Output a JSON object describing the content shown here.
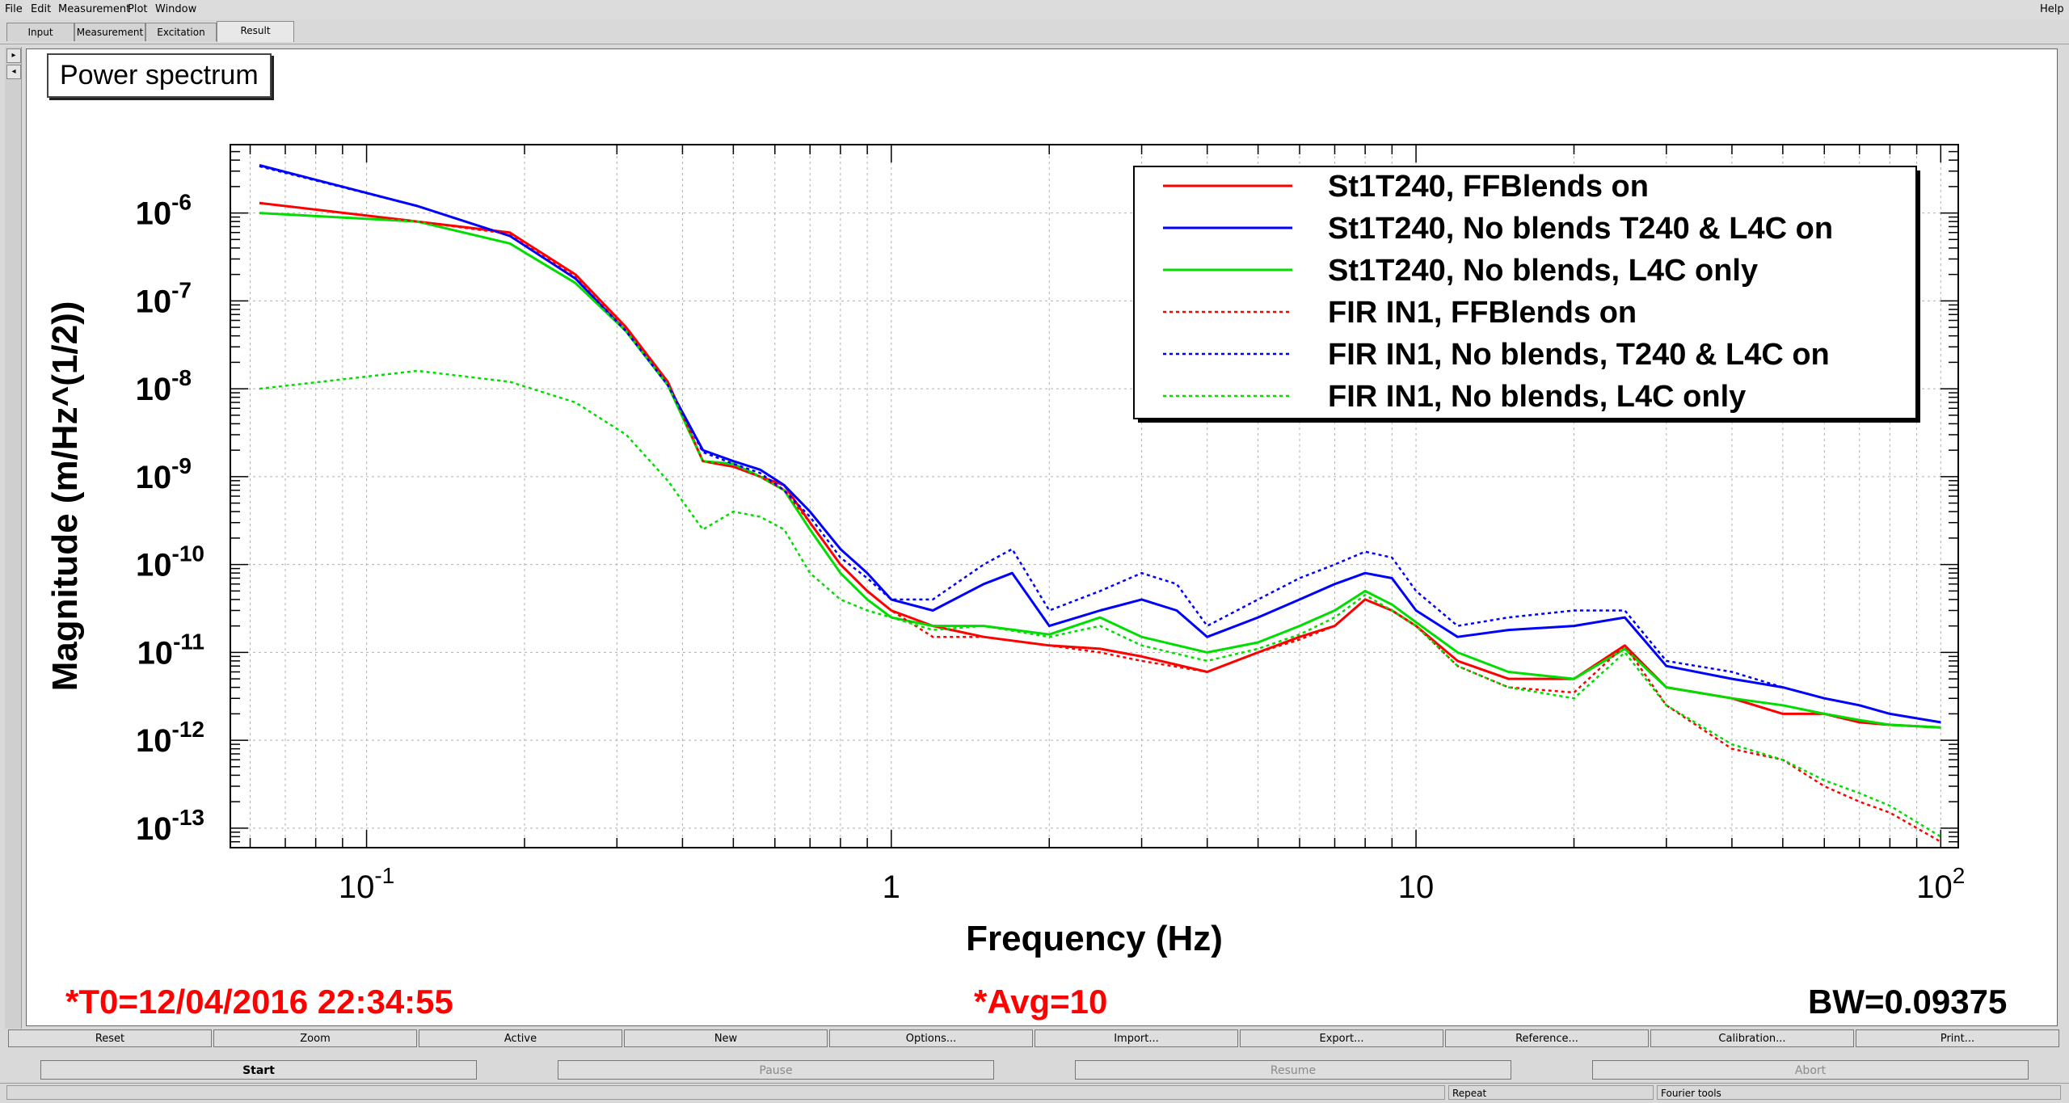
{
  "menubar": {
    "items": [
      "File",
      "Edit",
      "Measurement",
      "Plot",
      "Window"
    ],
    "help": "Help"
  },
  "tabs": [
    {
      "label": "Input"
    },
    {
      "label": "Measurement"
    },
    {
      "label": "Excitation"
    },
    {
      "label": "Result",
      "active": true
    }
  ],
  "plot": {
    "title": "Power spectrum",
    "t0": "*T0=12/04/2016 22:34:55",
    "avg": "*Avg=10",
    "bw": "BW=0.09375"
  },
  "chart_data": {
    "type": "line",
    "xlabel": "Frequency (Hz)",
    "ylabel": "Magnitude (m/Hz^(1/2))",
    "xscale": "log",
    "yscale": "log",
    "xlim": [
      0.055,
      108
    ],
    "ylim": [
      6e-14,
      6e-06
    ],
    "grid": true,
    "legend_position": "top-right",
    "x_ticks": [
      {
        "mantissa": "10",
        "exp": "-1"
      },
      {
        "mantissa": "1",
        "exp": ""
      },
      {
        "mantissa": "10",
        "exp": ""
      },
      {
        "mantissa": "10",
        "exp": "2"
      }
    ],
    "y_ticks": [
      {
        "mantissa": "10",
        "exp": "-6"
      },
      {
        "mantissa": "10",
        "exp": "-7"
      },
      {
        "mantissa": "10",
        "exp": "-8"
      },
      {
        "mantissa": "10",
        "exp": "-9"
      },
      {
        "mantissa": "10",
        "exp": "-10"
      },
      {
        "mantissa": "10",
        "exp": "-11"
      },
      {
        "mantissa": "10",
        "exp": "-12"
      },
      {
        "mantissa": "10",
        "exp": "-13"
      }
    ],
    "series": [
      {
        "name": "St1T240, FFBlends on",
        "color": "#ff0000",
        "style": "solid",
        "x": [
          0.0625,
          0.125,
          0.1875,
          0.25,
          0.3125,
          0.375,
          0.4375,
          0.5,
          0.5625,
          0.625,
          0.7,
          0.8,
          0.9,
          1.0,
          1.2,
          1.5,
          2.0,
          2.5,
          3.0,
          4.0,
          5.0,
          6.0,
          7.0,
          8.0,
          9.0,
          10,
          12,
          15,
          20,
          25,
          30,
          40,
          50,
          60,
          70,
          80,
          100
        ],
        "y": [
          1.3e-06,
          8e-07,
          6e-07,
          2e-07,
          5e-08,
          1.2e-08,
          1.5e-09,
          1.3e-09,
          1e-09,
          8e-10,
          3e-10,
          1e-10,
          5e-11,
          3e-11,
          2e-11,
          1.5e-11,
          1.2e-11,
          1.1e-11,
          9e-12,
          6e-12,
          1e-11,
          1.5e-11,
          2e-11,
          4e-11,
          3e-11,
          2e-11,
          8e-12,
          5e-12,
          5e-12,
          1.2e-11,
          4e-12,
          3e-12,
          2e-12,
          2e-12,
          1.6e-12,
          1.5e-12,
          1.4e-12
        ]
      },
      {
        "name": "St1T240, No blends T240 & L4C on",
        "color": "#0000ff",
        "style": "solid",
        "x": [
          0.0625,
          0.125,
          0.1875,
          0.25,
          0.3125,
          0.375,
          0.4375,
          0.5,
          0.5625,
          0.625,
          0.7,
          0.8,
          0.9,
          1.0,
          1.2,
          1.5,
          1.7,
          2.0,
          2.5,
          3.0,
          3.5,
          4.0,
          5.0,
          6.0,
          7.0,
          8.0,
          9.0,
          10,
          12,
          15,
          20,
          25,
          30,
          40,
          50,
          60,
          70,
          80,
          100
        ],
        "y": [
          3.5e-06,
          1.2e-06,
          5.5e-07,
          1.8e-07,
          4.5e-08,
          1.1e-08,
          2e-09,
          1.5e-09,
          1.2e-09,
          8e-10,
          4e-10,
          1.5e-10,
          8e-11,
          4e-11,
          3e-11,
          6e-11,
          8e-11,
          2e-11,
          3e-11,
          4e-11,
          3e-11,
          1.5e-11,
          2.5e-11,
          4e-11,
          6e-11,
          8e-11,
          7e-11,
          3e-11,
          1.5e-11,
          1.8e-11,
          2e-11,
          2.5e-11,
          7e-12,
          5e-12,
          4e-12,
          3e-12,
          2.5e-12,
          2e-12,
          1.6e-12
        ]
      },
      {
        "name": "St1T240, No blends, L4C only",
        "color": "#00dd00",
        "style": "solid",
        "x": [
          0.0625,
          0.125,
          0.1875,
          0.25,
          0.3125,
          0.375,
          0.4375,
          0.5,
          0.5625,
          0.625,
          0.7,
          0.8,
          0.9,
          1.0,
          1.2,
          1.5,
          2.0,
          2.5,
          3.0,
          4.0,
          5.0,
          6.0,
          7.0,
          8.0,
          9.0,
          10,
          12,
          15,
          20,
          25,
          30,
          40,
          50,
          60,
          70,
          80,
          100
        ],
        "y": [
          1e-06,
          8e-07,
          4.5e-07,
          1.6e-07,
          4.5e-08,
          1.1e-08,
          1.5e-09,
          1.4e-09,
          1e-09,
          7e-10,
          2.5e-10,
          8e-11,
          4e-11,
          2.5e-11,
          2e-11,
          2e-11,
          1.6e-11,
          2.5e-11,
          1.5e-11,
          1e-11,
          1.3e-11,
          2e-11,
          3e-11,
          5e-11,
          3.5e-11,
          2.2e-11,
          1e-11,
          6e-12,
          5e-12,
          1.1e-11,
          4e-12,
          3e-12,
          2.5e-12,
          2e-12,
          1.7e-12,
          1.5e-12,
          1.4e-12
        ]
      },
      {
        "name": "FIR IN1, FFBlends on",
        "color": "#ff0000",
        "style": "dotted",
        "x": [
          0.0625,
          0.125,
          0.1875,
          0.25,
          0.3125,
          0.375,
          0.4375,
          0.5,
          0.5625,
          0.625,
          0.7,
          0.8,
          0.9,
          1.0,
          1.2,
          1.5,
          2.0,
          2.5,
          3.0,
          4.0,
          5.0,
          6.0,
          7.0,
          8.0,
          9.0,
          10,
          12,
          15,
          20,
          25,
          30,
          40,
          50,
          60,
          70,
          80,
          100
        ],
        "y": [
          1.3e-06,
          8e-07,
          5.8e-07,
          1.9e-07,
          4.8e-08,
          1.2e-08,
          1.5e-09,
          1.3e-09,
          1e-09,
          7e-10,
          3e-10,
          1e-10,
          5e-11,
          3e-11,
          1.5e-11,
          1.5e-11,
          1.2e-11,
          1e-11,
          8e-12,
          6e-12,
          1e-11,
          1.4e-11,
          2e-11,
          4e-11,
          3e-11,
          2e-11,
          7e-12,
          4e-12,
          3.5e-12,
          1.2e-11,
          2.5e-12,
          8e-13,
          6e-13,
          3e-13,
          2e-13,
          1.5e-13,
          7e-14
        ]
      },
      {
        "name": "FIR IN1, No blends, T240 & L4C on",
        "color": "#0000ff",
        "style": "dotted",
        "x": [
          0.0625,
          0.125,
          0.1875,
          0.25,
          0.3125,
          0.375,
          0.4375,
          0.5,
          0.5625,
          0.625,
          0.7,
          0.8,
          0.9,
          1.0,
          1.2,
          1.5,
          1.7,
          2.0,
          2.5,
          3.0,
          3.5,
          4.0,
          5.0,
          6.0,
          7.0,
          8.0,
          9.0,
          10,
          12,
          15,
          20,
          25,
          30,
          40,
          50,
          60,
          70,
          80,
          100
        ],
        "y": [
          3.4e-06,
          1.2e-06,
          5.5e-07,
          1.8e-07,
          4.5e-08,
          1.1e-08,
          1.9e-09,
          1.4e-09,
          1.1e-09,
          7e-10,
          3.5e-10,
          1.2e-10,
          7e-11,
          4e-11,
          4e-11,
          1e-10,
          1.5e-10,
          3e-11,
          5e-11,
          8e-11,
          6e-11,
          2e-11,
          4e-11,
          7e-11,
          1e-10,
          1.4e-10,
          1.2e-10,
          5e-11,
          2e-11,
          2.5e-11,
          3e-11,
          3e-11,
          8e-12,
          6e-12,
          4e-12,
          3e-12,
          2.5e-12,
          2e-12,
          1.6e-12
        ]
      },
      {
        "name": "FIR IN1, No blends, L4C only",
        "color": "#00dd00",
        "style": "dotted",
        "x": [
          0.0625,
          0.125,
          0.1875,
          0.25,
          0.3125,
          0.375,
          0.4375,
          0.5,
          0.5625,
          0.625,
          0.7,
          0.8,
          0.9,
          1.0,
          1.2,
          1.5,
          2.0,
          2.5,
          3.0,
          4.0,
          5.0,
          6.0,
          7.0,
          8.0,
          9.0,
          10,
          12,
          15,
          20,
          25,
          30,
          40,
          50,
          60,
          70,
          80,
          100
        ],
        "y": [
          1e-08,
          1.6e-08,
          1.2e-08,
          7e-09,
          3e-09,
          9e-10,
          2.5e-10,
          4e-10,
          3.5e-10,
          2.5e-10,
          8e-11,
          4e-11,
          3e-11,
          2.5e-11,
          1.8e-11,
          2e-11,
          1.5e-11,
          2e-11,
          1.2e-11,
          8e-12,
          1.1e-11,
          1.6e-11,
          2.5e-11,
          4.5e-11,
          3e-11,
          2e-11,
          7e-12,
          4e-12,
          3e-12,
          1e-11,
          2.5e-12,
          9e-13,
          6e-13,
          3.5e-13,
          2.5e-13,
          1.8e-13,
          8e-14
        ]
      }
    ]
  },
  "buttons_row1": [
    "Reset",
    "Zoom",
    "Active",
    "New",
    "Options...",
    "Import...",
    "Export...",
    "Reference...",
    "Calibration...",
    "Print..."
  ],
  "buttons_row2": [
    {
      "label": "Start",
      "enabled": true
    },
    {
      "label": "Pause",
      "enabled": false
    },
    {
      "label": "Resume",
      "enabled": false
    },
    {
      "label": "Abort",
      "enabled": false
    }
  ],
  "statusbar": {
    "repeat": "Repeat",
    "fourier": "Fourier tools"
  }
}
